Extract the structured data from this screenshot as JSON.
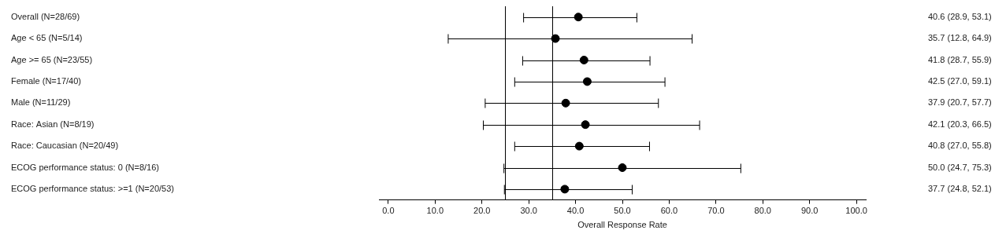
{
  "chart_data": {
    "type": "forest",
    "x_label": "Overall Response Rate",
    "categories": [
      "Overall (N=28/69)",
      "Age < 65 (N=5/14)",
      "Age >= 65 (N=23/55)",
      "Female (N=17/40)",
      "Male (N=11/29)",
      "Race: Asian (N=8/19)",
      "Race: Caucasian (N=20/49)",
      "ECOG performance status: 0 (N=8/16)",
      "ECOG performance status: >=1 (N=20/53)"
    ],
    "values": [
      40.6,
      35.7,
      41.8,
      42.5,
      37.9,
      42.1,
      40.8,
      50.0,
      37.7
    ],
    "lower": [
      28.9,
      12.8,
      28.7,
      27.0,
      20.7,
      20.3,
      27.0,
      24.7,
      24.8
    ],
    "upper": [
      53.1,
      64.9,
      55.9,
      59.1,
      57.7,
      66.5,
      55.8,
      75.3,
      52.1
    ],
    "value_labels": [
      "40.6 (28.9, 53.1)",
      "35.7 (12.8, 64.9)",
      "41.8 (28.7, 55.9)",
      "42.5 (27.0, 59.1)",
      "37.9 (20.7, 57.7)",
      "42.1 (20.3, 66.5)",
      "40.8 (27.0, 55.8)",
      "50.0 (24.7, 75.3)",
      "37.7 (24.8, 52.1)"
    ],
    "reference_lines": [
      25,
      35
    ],
    "color": "#000000",
    "marker": "circle",
    "xlim": [
      -2,
      102
    ],
    "xticks": [
      {
        "value": 0,
        "label": "0.0"
      },
      {
        "value": 10,
        "label": "10.0"
      },
      {
        "value": 20,
        "label": "20.0"
      },
      {
        "value": 30,
        "label": "30.0"
      },
      {
        "value": 40,
        "label": "40.0"
      },
      {
        "value": 50,
        "label": "50.0"
      },
      {
        "value": 60,
        "label": "60.0"
      },
      {
        "value": 70,
        "label": "70.0"
      },
      {
        "value": 80,
        "label": "80.0"
      },
      {
        "value": 90,
        "label": "90.0"
      },
      {
        "value": 100,
        "label": "100.0"
      }
    ],
    "grid": false,
    "data_labels": true
  }
}
